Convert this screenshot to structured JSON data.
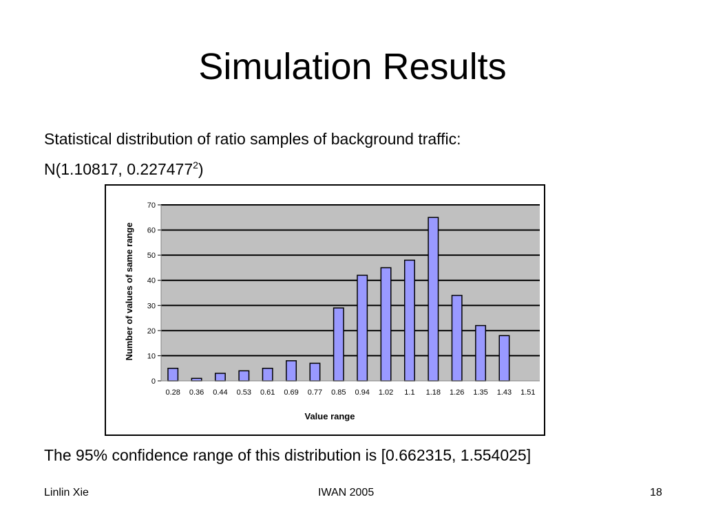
{
  "slide": {
    "title": "Simulation Results",
    "line1": "Statistical distribution of ratio samples of background traffic:",
    "line2_main": "N(1.10817, 0.227477",
    "line2_sup": "2",
    "line2_close": ")",
    "note": "The 95% confidence range of this distribution is [0.662315, 1.554025]"
  },
  "footer": {
    "left": "Linlin Xie",
    "center": "IWAN 2005",
    "right": "18"
  },
  "colors": {
    "bar_fill": "#9999ff",
    "bar_stroke": "#000000",
    "plot_bg": "#c0c0c0",
    "gridline": "#000000"
  },
  "chart_data": {
    "type": "bar",
    "title": "",
    "xlabel": "Value range",
    "ylabel": "Number of values of same range",
    "categories": [
      "0.28",
      "0.36",
      "0.44",
      "0.53",
      "0.61",
      "0.69",
      "0.77",
      "0.85",
      "0.94",
      "1.02",
      "1.1",
      "1.18",
      "1.26",
      "1.35",
      "1.43",
      "1.51"
    ],
    "values": [
      5,
      1,
      3,
      4,
      5,
      8,
      7,
      29,
      42,
      45,
      48,
      65,
      34,
      22,
      18,
      0
    ],
    "ylim": [
      0,
      70
    ],
    "yticks": [
      0,
      10,
      20,
      30,
      40,
      50,
      60,
      70
    ],
    "grid": true,
    "legend": "none"
  }
}
